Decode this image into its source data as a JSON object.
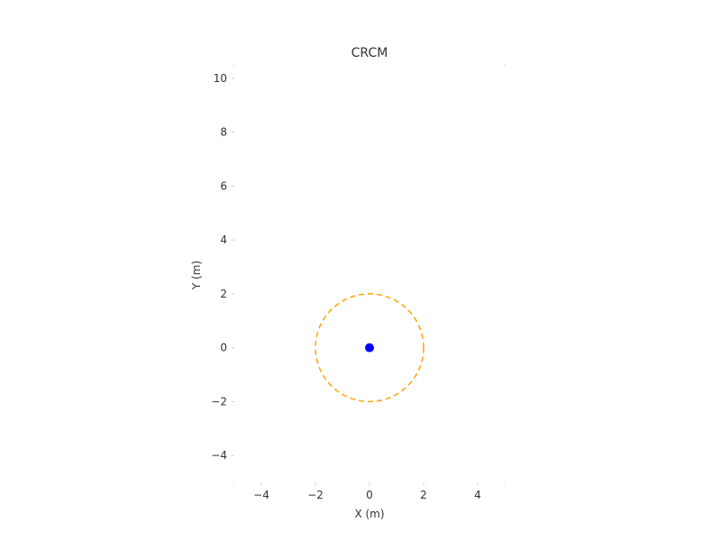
{
  "chart_data": {
    "type": "scatter",
    "title": "CRCM",
    "xlabel": "X (m)",
    "ylabel": "Y (m)",
    "xlim": [
      -5,
      5
    ],
    "ylim": [
      -5,
      10.5
    ],
    "xticks": [
      -4,
      -2,
      0,
      2,
      4
    ],
    "yticks": [
      -4,
      -2,
      0,
      2,
      4,
      6,
      8,
      10
    ],
    "grid": false,
    "points": [
      {
        "x": 0,
        "y": 0,
        "color": "#0000ff"
      }
    ],
    "circles": [
      {
        "cx": 0,
        "cy": 0,
        "r": 2,
        "color": "#ffa500",
        "style": "dashed"
      }
    ]
  }
}
